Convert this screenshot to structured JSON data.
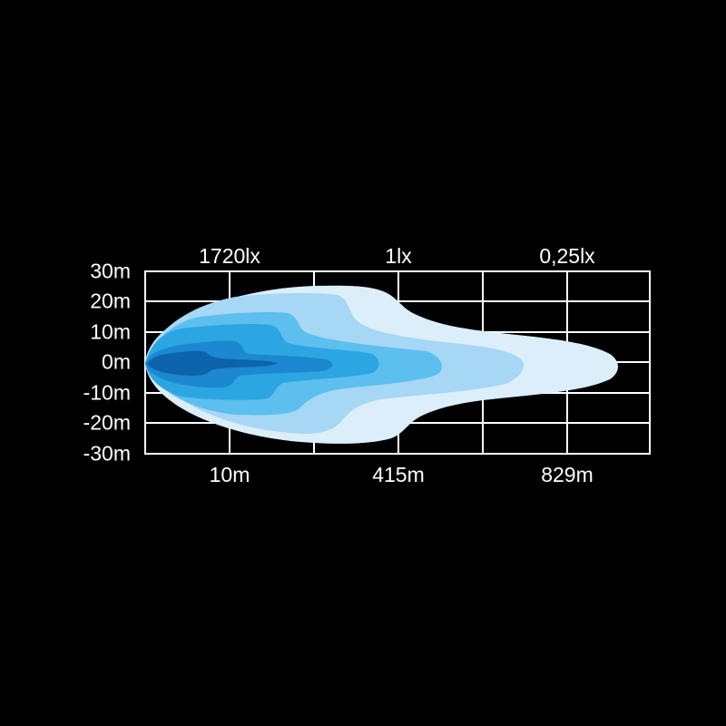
{
  "top_labels": [
    "1720lx",
    "1lx",
    "0,25lx"
  ],
  "bottom_labels": [
    "10m",
    "415m",
    "829m"
  ],
  "y_labels": [
    "30m",
    "20m",
    "10m",
    "0m",
    "-10m",
    "-20m",
    "-30m"
  ],
  "colors": {
    "background": "#000000",
    "grid": "#ffffff",
    "zones": [
      "#dbeefa",
      "#a6d7f4",
      "#5dbfed",
      "#2ba6e2",
      "#1c88cf",
      "#0e63ad"
    ]
  }
}
